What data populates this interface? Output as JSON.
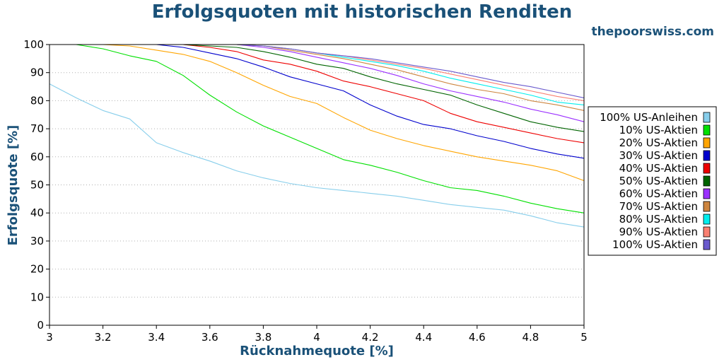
{
  "chart_data": {
    "type": "line",
    "title": "Erfolgsquoten mit historischen Renditen",
    "watermark": "thepoorswiss.com",
    "xlabel": "Rücknahmequote [%]",
    "ylabel": "Erfolgsquote [%]",
    "xlim": [
      3,
      5
    ],
    "ylim": [
      0,
      100
    ],
    "x_ticks": [
      "3",
      "3.2",
      "3.4",
      "3.6",
      "3.8",
      "4",
      "4.2",
      "4.4",
      "4.6",
      "4.8",
      "5"
    ],
    "y_ticks": [
      "0",
      "10",
      "20",
      "30",
      "40",
      "50",
      "60",
      "70",
      "80",
      "90",
      "100"
    ],
    "grid": "horizontal dotted",
    "legend_position": "right",
    "x": [
      3.0,
      3.1,
      3.2,
      3.3,
      3.4,
      3.5,
      3.6,
      3.7,
      3.8,
      3.9,
      4.0,
      4.1,
      4.2,
      4.3,
      4.4,
      4.5,
      4.6,
      4.7,
      4.8,
      4.9,
      5.0
    ],
    "series": [
      {
        "name": "100% US-Anleihen",
        "color": "#87ceeb",
        "values": [
          86,
          81,
          76.5,
          73.5,
          65,
          61.5,
          58.5,
          55,
          52.5,
          50.5,
          49,
          48,
          47,
          46,
          44.5,
          43,
          42,
          41,
          39,
          36.5,
          35
        ]
      },
      {
        "name": "10% US-Aktien",
        "color": "#00e000",
        "values": [
          100,
          100,
          98.5,
          96,
          94,
          89,
          82,
          76,
          71,
          67,
          63,
          59,
          57,
          54.5,
          51.5,
          49,
          48,
          46,
          43.5,
          41.5,
          40
        ]
      },
      {
        "name": "20% US-Aktien",
        "color": "#ffa500",
        "values": [
          100,
          100,
          100,
          99.5,
          98,
          96.5,
          94,
          90,
          85.5,
          81.5,
          79,
          74,
          69.5,
          66.5,
          64,
          62,
          60,
          58.5,
          57,
          55,
          51.5
        ]
      },
      {
        "name": "30% US-Aktien",
        "color": "#0000cd",
        "values": [
          100,
          100,
          100,
          100,
          100,
          99,
          97,
          95,
          92,
          88.5,
          86,
          83.5,
          78.5,
          74.5,
          71.5,
          70,
          67.5,
          65.5,
          63,
          61,
          59.5
        ]
      },
      {
        "name": "40% US-Aktien",
        "color": "#ee0000",
        "values": [
          100,
          100,
          100,
          100,
          100,
          100,
          99,
          97.5,
          94.5,
          93,
          90.5,
          87,
          85,
          82.5,
          80,
          75.5,
          72.5,
          70.5,
          68.5,
          66.5,
          65
        ]
      },
      {
        "name": "50% US-Aktien",
        "color": "#006400",
        "values": [
          100,
          100,
          100,
          100,
          100,
          100,
          99.5,
          99,
          97.5,
          95.5,
          93,
          91.5,
          88.5,
          86,
          84,
          82,
          78.5,
          75.5,
          72.5,
          70.5,
          69
        ]
      },
      {
        "name": "60% US-Aktien",
        "color": "#9b30ff",
        "values": [
          100,
          100,
          100,
          100,
          100,
          100,
          100,
          100,
          99,
          97.5,
          95.5,
          93.5,
          91.5,
          89,
          86,
          83.5,
          81.5,
          79.5,
          77,
          75,
          72.5
        ]
      },
      {
        "name": "70% US-Aktien",
        "color": "#cd853f",
        "values": [
          100,
          100,
          100,
          100,
          100,
          100,
          100,
          100,
          99.5,
          98,
          96.5,
          95,
          93,
          91,
          88.5,
          86,
          84,
          82.5,
          80,
          78.5,
          76.5
        ]
      },
      {
        "name": "80% US-Aktien",
        "color": "#00eeee",
        "values": [
          100,
          100,
          100,
          100,
          100,
          100,
          100,
          100,
          99.5,
          98.5,
          97,
          95.5,
          94,
          92.5,
          90.5,
          88,
          86,
          84,
          82,
          79.5,
          78.5
        ]
      },
      {
        "name": "90% US-Aktien",
        "color": "#fa8072",
        "values": [
          100,
          100,
          100,
          100,
          100,
          100,
          100,
          100,
          99.5,
          98.5,
          97,
          96,
          94.5,
          93,
          91.5,
          89.5,
          87.5,
          85.5,
          83.5,
          81.5,
          80
        ]
      },
      {
        "name": "100% US-Aktien",
        "color": "#6a5acd",
        "values": [
          100,
          100,
          100,
          100,
          100,
          100,
          100,
          100,
          99.5,
          98.5,
          97,
          96,
          95,
          93.5,
          92,
          90.5,
          88.5,
          86.5,
          85,
          83,
          81
        ]
      }
    ]
  }
}
